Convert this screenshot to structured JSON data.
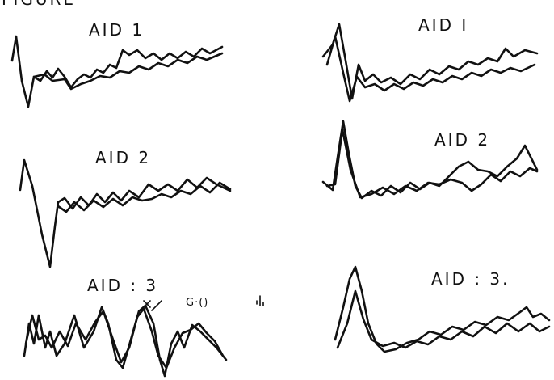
{
  "header": {
    "title": "FIGURE"
  },
  "panels": [
    {
      "label": "AID 1"
    },
    {
      "label": "AID I"
    },
    {
      "label": "AID 2"
    },
    {
      "label": "AID 2"
    },
    {
      "label": "AID : 3"
    },
    {
      "label": "AID : 3."
    }
  ],
  "annotations": [
    {
      "text": "G·()"
    }
  ]
}
